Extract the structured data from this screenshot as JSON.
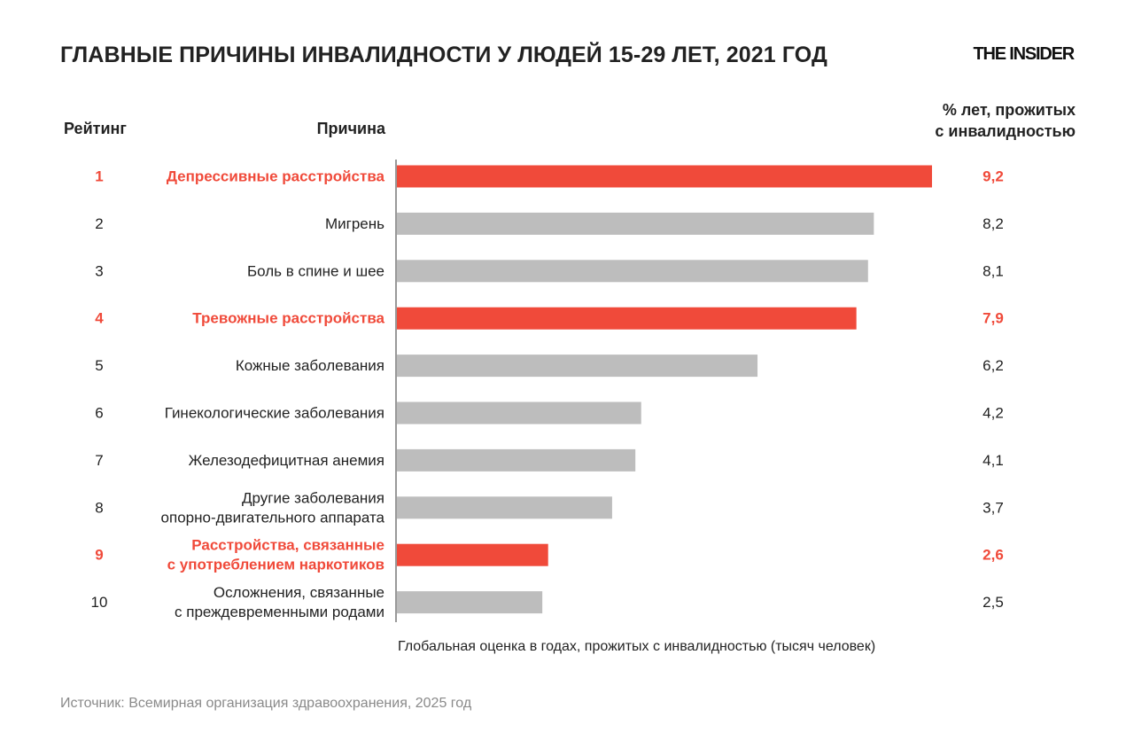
{
  "header": {
    "title": "ГЛАВНЫЕ ПРИЧИНЫ ИНВАЛИДНОСТИ У ЛЮДЕЙ 15-29 ЛЕТ, 2021 ГОД",
    "logo": "THE INSIDER"
  },
  "columns": {
    "rank": "Рейтинг",
    "cause": "Причина",
    "pct_line1": "% лет, прожитых",
    "pct_line2": "с инвалидностью"
  },
  "axis_note": "Глобальная оценка в годах, прожитых с инвалидностью (тысяч человек)",
  "source": "Источник: Всемирная организация здравоохранения, 2025 год",
  "colors": {
    "highlight": "#f04a3a",
    "default_bar": "#bdbdbd",
    "text": "#222222"
  },
  "chart_data": {
    "type": "bar",
    "orientation": "horizontal",
    "categories": [
      [
        "Депрессивные расстройства"
      ],
      [
        "Мигрень"
      ],
      [
        "Боль в спине и шее"
      ],
      [
        "Тревожные расстройства"
      ],
      [
        "Кожные заболевания"
      ],
      [
        "Гинекологические заболевания"
      ],
      [
        "Железодефицитная анемия"
      ],
      [
        "Другие заболевания",
        "опорно-двигательного аппарата"
      ],
      [
        "Расстройства, связанные",
        "с употреблением наркотиков"
      ],
      [
        "Осложнения, связанные",
        "с преждевременными родами"
      ]
    ],
    "ranks": [
      "1",
      "2",
      "3",
      "4",
      "5",
      "6",
      "7",
      "8",
      "9",
      "10"
    ],
    "values": [
      9.2,
      8.2,
      8.1,
      7.9,
      6.2,
      4.2,
      4.1,
      3.7,
      2.6,
      2.5
    ],
    "value_labels": [
      "9,2",
      "8,2",
      "8,1",
      "7,9",
      "6,2",
      "4,2",
      "4,1",
      "3,7",
      "2,6",
      "2,5"
    ],
    "highlighted": [
      true,
      false,
      false,
      true,
      false,
      false,
      false,
      false,
      true,
      false
    ],
    "xlim": [
      0,
      9.2
    ],
    "grid": false
  }
}
